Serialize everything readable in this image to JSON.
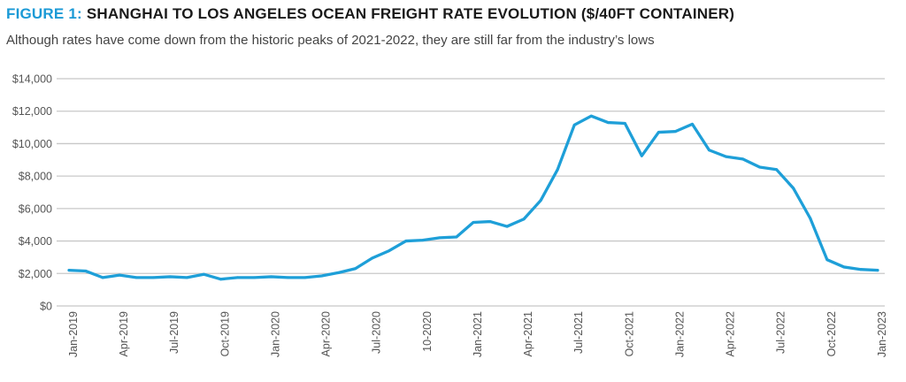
{
  "title_prefix": "FIGURE 1:",
  "title": "SHANGHAI TO LOS ANGELES OCEAN FREIGHT RATE EVOLUTION ($/40FT CONTAINER)",
  "subtitle": "Although rates have come down from the historic peaks of 2021-2022, they are still far from the industry’s lows",
  "colors": {
    "accent": "#1b9ad6",
    "line": "#1e9fd8",
    "grid": "#c8c8c8"
  },
  "chart_data": {
    "type": "line",
    "title": "SHANGHAI TO LOS ANGELES OCEAN FREIGHT RATE EVOLUTION ($/40FT CONTAINER)",
    "xlabel": "",
    "ylabel": "",
    "ylim": [
      0,
      14000
    ],
    "grid": true,
    "legend": "none",
    "y_ticks": [
      "$0",
      "$2,000",
      "$4,000",
      "$6,000",
      "$8,000",
      "$10,000",
      "$12,000",
      "$14,000"
    ],
    "x_ticks": [
      "Jan-2019",
      "Apr-2019",
      "Jul-2019",
      "Oct-2019",
      "Jan-2020",
      "Apr-2020",
      "Jul-2020",
      "10-2020",
      "Jan-2021",
      "Apr-2021",
      "Jul-2021",
      "Oct-2021",
      "Jan-2022",
      "Apr-2022",
      "Jul-2022",
      "Oct-2022",
      "Jan-2023"
    ],
    "x": [
      "2019-01",
      "2019-02",
      "2019-03",
      "2019-04",
      "2019-05",
      "2019-06",
      "2019-07",
      "2019-08",
      "2019-09",
      "2019-10",
      "2019-11",
      "2019-12",
      "2020-01",
      "2020-02",
      "2020-03",
      "2020-04",
      "2020-05",
      "2020-06",
      "2020-07",
      "2020-08",
      "2020-09",
      "2020-10",
      "2020-11",
      "2020-12",
      "2021-01",
      "2021-02",
      "2021-03",
      "2021-04",
      "2021-05",
      "2021-06",
      "2021-07",
      "2021-08",
      "2021-09",
      "2021-10",
      "2021-11",
      "2021-12",
      "2022-01",
      "2022-02",
      "2022-03",
      "2022-04",
      "2022-05",
      "2022-06",
      "2022-07",
      "2022-08",
      "2022-09",
      "2022-10",
      "2022-11",
      "2022-12",
      "2023-01"
    ],
    "series": [
      {
        "values": [
          2200,
          2150,
          1750,
          1900,
          1750,
          1750,
          1800,
          1750,
          1950,
          1650,
          1750,
          1750,
          1800,
          1750,
          1750,
          1850,
          2050,
          2300,
          2950,
          3400,
          4000,
          4050,
          4200,
          4250,
          5150,
          5200,
          4900,
          5350,
          6500,
          8400,
          11150,
          11700,
          11300,
          11250,
          9250,
          10700,
          10750,
          11200,
          9600,
          9200,
          9050,
          8550,
          8400,
          7250,
          5400,
          2850,
          2400,
          2250,
          2200
        ]
      }
    ]
  }
}
